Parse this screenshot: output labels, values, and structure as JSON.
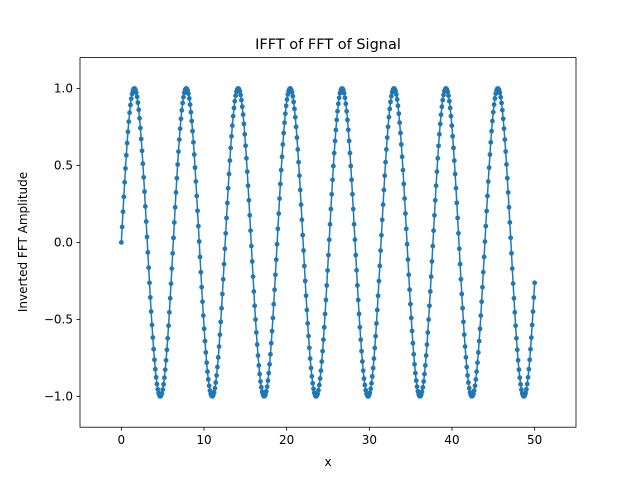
{
  "chart_data": {
    "type": "line",
    "title": "IFFT of FFT of Signal",
    "xlabel": "x",
    "ylabel": "Inverted FFT Amplitude",
    "xlim": [
      -5,
      55
    ],
    "ylim": [
      -1.2,
      1.2
    ],
    "xticks": [
      0,
      10,
      20,
      30,
      40,
      50
    ],
    "xtick_labels": [
      "0",
      "10",
      "20",
      "30",
      "40",
      "50"
    ],
    "yticks": [
      -1.0,
      -0.5,
      0.0,
      0.5,
      1.0
    ],
    "ytick_labels": [
      "−1.0",
      "−0.5",
      "0.0",
      "0.5",
      "1.0"
    ],
    "grid": false,
    "series": [
      {
        "color": "#1f77b4",
        "marker": "circle",
        "function": "sin(x)",
        "x_start": 0,
        "x_end": 50,
        "num_points": 500
      }
    ]
  }
}
